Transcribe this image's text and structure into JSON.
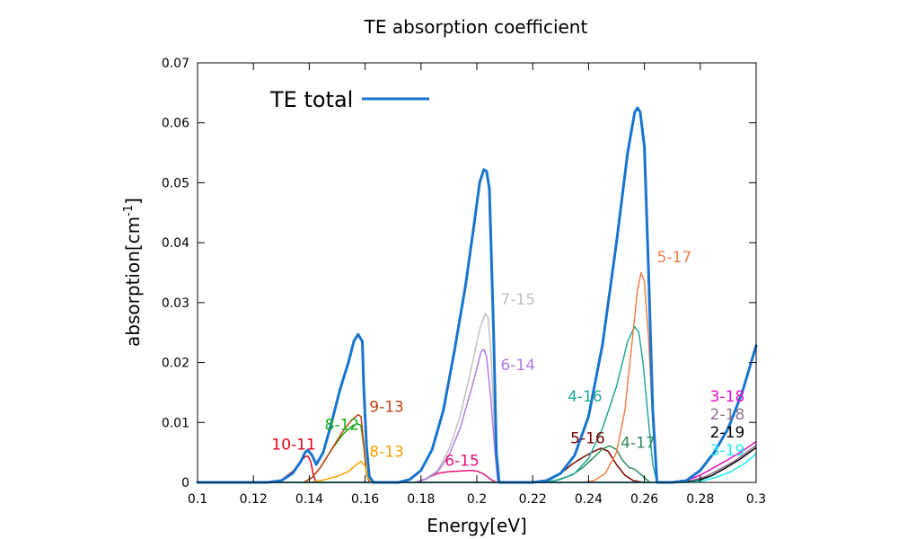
{
  "chart_data": {
    "type": "line",
    "title": "TE absorption coefficient",
    "xlabel": "Energy[eV]",
    "ylabel": "absorption[cm",
    "ylabel_sup": "-1",
    "ylabel_end": "]",
    "xlim": [
      0.1,
      0.3
    ],
    "ylim": [
      0,
      0.07
    ],
    "xticks": [
      0.1,
      0.12,
      0.14,
      0.16,
      0.18,
      0.2,
      0.22,
      0.24,
      0.26,
      0.28,
      0.3
    ],
    "xtick_labels": [
      "0.1",
      "0.12",
      "0.14",
      "0.16",
      "0.18",
      "0.2",
      "0.22",
      "0.24",
      "0.26",
      "0.28",
      "0.3"
    ],
    "yticks": [
      0,
      0.01,
      0.02,
      0.03,
      0.04,
      0.05,
      0.06,
      0.07
    ],
    "ytick_labels": [
      "0",
      "0.01",
      "0.02",
      "0.03",
      "0.04",
      "0.05",
      "0.06",
      "0.07"
    ],
    "grid": false,
    "legend": {
      "position": "top-left",
      "entries": [
        "TE total"
      ]
    },
    "series": [
      {
        "name": "TE total",
        "color": "#1874cd",
        "width": 3,
        "points": [
          [
            0.1,
            0
          ],
          [
            0.125,
            0
          ],
          [
            0.13,
            0.0003
          ],
          [
            0.134,
            0.0015
          ],
          [
            0.137,
            0.0035
          ],
          [
            0.1385,
            0.005
          ],
          [
            0.1395,
            0.0054
          ],
          [
            0.141,
            0.0045
          ],
          [
            0.1425,
            0.003
          ],
          [
            0.145,
            0.005
          ],
          [
            0.148,
            0.01
          ],
          [
            0.151,
            0.0155
          ],
          [
            0.154,
            0.02
          ],
          [
            0.156,
            0.0236
          ],
          [
            0.1575,
            0.0247
          ],
          [
            0.159,
            0.0235
          ],
          [
            0.1595,
            0.016
          ],
          [
            0.1605,
            0.006
          ],
          [
            0.1615,
            0.001
          ],
          [
            0.163,
            0
          ],
          [
            0.172,
            0
          ],
          [
            0.176,
            0.0005
          ],
          [
            0.18,
            0.002
          ],
          [
            0.184,
            0.0055
          ],
          [
            0.188,
            0.012
          ],
          [
            0.192,
            0.022
          ],
          [
            0.196,
            0.033
          ],
          [
            0.199,
            0.043
          ],
          [
            0.201,
            0.05
          ],
          [
            0.2025,
            0.0522
          ],
          [
            0.2035,
            0.0519
          ],
          [
            0.2045,
            0.049
          ],
          [
            0.206,
            0.025
          ],
          [
            0.207,
            0.005
          ],
          [
            0.208,
            0
          ],
          [
            0.22,
            0
          ],
          [
            0.225,
            0.0003
          ],
          [
            0.23,
            0.0015
          ],
          [
            0.235,
            0.0045
          ],
          [
            0.24,
            0.011
          ],
          [
            0.245,
            0.023
          ],
          [
            0.25,
            0.04
          ],
          [
            0.254,
            0.055
          ],
          [
            0.2565,
            0.0617
          ],
          [
            0.2575,
            0.0625
          ],
          [
            0.2585,
            0.0618
          ],
          [
            0.26,
            0.056
          ],
          [
            0.2615,
            0.035
          ],
          [
            0.263,
            0.012
          ],
          [
            0.2645,
            0
          ],
          [
            0.27,
            0
          ],
          [
            0.275,
            0.0003
          ],
          [
            0.28,
            0.002
          ],
          [
            0.285,
            0.005
          ],
          [
            0.29,
            0.009
          ],
          [
            0.295,
            0.015
          ],
          [
            0.3,
            0.0228
          ]
        ]
      },
      {
        "name": "10-11",
        "color": "#e0001a",
        "width": 1.5,
        "points": [
          [
            0.1,
            0
          ],
          [
            0.125,
            0
          ],
          [
            0.13,
            0.0004
          ],
          [
            0.134,
            0.0018
          ],
          [
            0.137,
            0.0035
          ],
          [
            0.1385,
            0.0043
          ],
          [
            0.1395,
            0.0044
          ],
          [
            0.1405,
            0.0035
          ],
          [
            0.1415,
            0.0012
          ],
          [
            0.1425,
            0
          ]
        ]
      },
      {
        "name": "8-12",
        "color": "#11b011",
        "width": 1.5,
        "points": [
          [
            0.1,
            0
          ],
          [
            0.138,
            0
          ],
          [
            0.141,
            0.0008
          ],
          [
            0.144,
            0.0025
          ],
          [
            0.148,
            0.0055
          ],
          [
            0.152,
            0.008
          ],
          [
            0.155,
            0.0093
          ],
          [
            0.157,
            0.0098
          ],
          [
            0.1585,
            0.0095
          ],
          [
            0.1595,
            0.006
          ],
          [
            0.1605,
            0.0015
          ],
          [
            0.1615,
            0
          ]
        ]
      },
      {
        "name": "9-13",
        "color": "#c04010",
        "width": 1.5,
        "points": [
          [
            0.1,
            0
          ],
          [
            0.138,
            0
          ],
          [
            0.141,
            0.0008
          ],
          [
            0.144,
            0.0025
          ],
          [
            0.148,
            0.0055
          ],
          [
            0.152,
            0.0085
          ],
          [
            0.155,
            0.0103
          ],
          [
            0.1575,
            0.0113
          ],
          [
            0.1585,
            0.011
          ],
          [
            0.1595,
            0.0065
          ],
          [
            0.1605,
            0.0015
          ],
          [
            0.1615,
            0
          ]
        ]
      },
      {
        "name": "8-13",
        "color": "#f0a000",
        "width": 1.5,
        "points": [
          [
            0.1,
            0
          ],
          [
            0.14,
            0
          ],
          [
            0.145,
            0.0004
          ],
          [
            0.15,
            0.001
          ],
          [
            0.154,
            0.0018
          ],
          [
            0.157,
            0.003
          ],
          [
            0.1585,
            0.0035
          ],
          [
            0.16,
            0.0028
          ],
          [
            0.161,
            0.0008
          ],
          [
            0.162,
            0
          ]
        ]
      },
      {
        "name": "6-15",
        "color": "#e8107a",
        "width": 1.5,
        "points": [
          [
            0.1,
            0
          ],
          [
            0.178,
            0
          ],
          [
            0.182,
            0.0007
          ],
          [
            0.186,
            0.0015
          ],
          [
            0.19,
            0.0018
          ],
          [
            0.194,
            0.0019
          ],
          [
            0.198,
            0.002
          ],
          [
            0.2,
            0.0019
          ],
          [
            0.2025,
            0.0014
          ],
          [
            0.205,
            0.0005
          ],
          [
            0.207,
            0
          ]
        ]
      },
      {
        "name": "7-15",
        "color": "#c0c0c0",
        "width": 1.5,
        "points": [
          [
            0.1,
            0
          ],
          [
            0.178,
            0
          ],
          [
            0.182,
            0.0007
          ],
          [
            0.186,
            0.002
          ],
          [
            0.19,
            0.0055
          ],
          [
            0.194,
            0.011
          ],
          [
            0.198,
            0.019
          ],
          [
            0.201,
            0.0255
          ],
          [
            0.203,
            0.0282
          ],
          [
            0.204,
            0.0275
          ],
          [
            0.205,
            0.022
          ],
          [
            0.206,
            0.012
          ],
          [
            0.207,
            0.003
          ],
          [
            0.2075,
            0
          ]
        ]
      },
      {
        "name": "6-14",
        "color": "#b07ae0",
        "width": 1.5,
        "points": [
          [
            0.1,
            0
          ],
          [
            0.178,
            0
          ],
          [
            0.182,
            0.0006
          ],
          [
            0.186,
            0.0018
          ],
          [
            0.19,
            0.0045
          ],
          [
            0.194,
            0.009
          ],
          [
            0.198,
            0.0155
          ],
          [
            0.2,
            0.019
          ],
          [
            0.2015,
            0.0218
          ],
          [
            0.2025,
            0.0222
          ],
          [
            0.2035,
            0.021
          ],
          [
            0.205,
            0.014
          ],
          [
            0.2065,
            0.005
          ],
          [
            0.2075,
            0
          ]
        ]
      },
      {
        "name": "5-16",
        "color": "#7a0000",
        "width": 1.5,
        "points": [
          [
            0.1,
            0
          ],
          [
            0.222,
            0
          ],
          [
            0.226,
            0.0005
          ],
          [
            0.23,
            0.0015
          ],
          [
            0.234,
            0.003
          ],
          [
            0.238,
            0.0042
          ],
          [
            0.242,
            0.0052
          ],
          [
            0.2445,
            0.0057
          ],
          [
            0.247,
            0.0052
          ],
          [
            0.25,
            0.003
          ],
          [
            0.253,
            0.0012
          ],
          [
            0.256,
            0.0003
          ],
          [
            0.26,
            0
          ]
        ]
      },
      {
        "name": "4-17",
        "color": "#2e8b57",
        "width": 1.5,
        "points": [
          [
            0.1,
            0
          ],
          [
            0.222,
            0
          ],
          [
            0.228,
            0.0003
          ],
          [
            0.234,
            0.0012
          ],
          [
            0.238,
            0.0025
          ],
          [
            0.242,
            0.0042
          ],
          [
            0.245,
            0.0056
          ],
          [
            0.2475,
            0.0061
          ],
          [
            0.25,
            0.0055
          ],
          [
            0.252,
            0.0038
          ],
          [
            0.2545,
            0.0025
          ],
          [
            0.2565,
            0.0022
          ],
          [
            0.259,
            0.0012
          ],
          [
            0.262,
            0
          ]
        ]
      },
      {
        "name": "4-16",
        "color": "#20a898",
        "width": 1.5,
        "points": [
          [
            0.1,
            0
          ],
          [
            0.225,
            0
          ],
          [
            0.23,
            0.0005
          ],
          [
            0.235,
            0.0015
          ],
          [
            0.24,
            0.004
          ],
          [
            0.245,
            0.009
          ],
          [
            0.25,
            0.016
          ],
          [
            0.254,
            0.0235
          ],
          [
            0.2565,
            0.026
          ],
          [
            0.258,
            0.025
          ],
          [
            0.2595,
            0.02
          ],
          [
            0.2615,
            0.01
          ],
          [
            0.263,
            0.003
          ],
          [
            0.2645,
            0
          ]
        ]
      },
      {
        "name": "5-17",
        "color": "#f08048",
        "width": 1.5,
        "points": [
          [
            0.1,
            0
          ],
          [
            0.238,
            0
          ],
          [
            0.242,
            0.0003
          ],
          [
            0.246,
            0.0015
          ],
          [
            0.25,
            0.005
          ],
          [
            0.253,
            0.012
          ],
          [
            0.2555,
            0.023
          ],
          [
            0.2575,
            0.032
          ],
          [
            0.2588,
            0.035
          ],
          [
            0.26,
            0.0335
          ],
          [
            0.2615,
            0.024
          ],
          [
            0.263,
            0.01
          ],
          [
            0.2645,
            0
          ]
        ]
      },
      {
        "name": "3-18",
        "color": "#e010c8",
        "width": 1.5,
        "points": [
          [
            0.1,
            0
          ],
          [
            0.27,
            0
          ],
          [
            0.275,
            0.0003
          ],
          [
            0.28,
            0.0012
          ],
          [
            0.285,
            0.0025
          ],
          [
            0.29,
            0.0038
          ],
          [
            0.295,
            0.0052
          ],
          [
            0.3,
            0.0068
          ]
        ]
      },
      {
        "name": "2-18",
        "color": "#907090",
        "width": 1.5,
        "points": [
          [
            0.1,
            0
          ],
          [
            0.272,
            0
          ],
          [
            0.277,
            0.0003
          ],
          [
            0.282,
            0.001
          ],
          [
            0.287,
            0.0022
          ],
          [
            0.292,
            0.0035
          ],
          [
            0.296,
            0.0048
          ],
          [
            0.3,
            0.0062
          ]
        ]
      },
      {
        "name": "2-19",
        "color": "#000000",
        "width": 1.5,
        "points": [
          [
            0.1,
            0
          ],
          [
            0.274,
            0
          ],
          [
            0.279,
            0.0003
          ],
          [
            0.284,
            0.0011
          ],
          [
            0.289,
            0.0024
          ],
          [
            0.294,
            0.0038
          ],
          [
            0.3,
            0.0058
          ]
        ]
      },
      {
        "name": "3-19",
        "color": "#20e8e8",
        "width": 1.5,
        "points": [
          [
            0.1,
            0
          ],
          [
            0.276,
            0
          ],
          [
            0.281,
            0.0003
          ],
          [
            0.286,
            0.0009
          ],
          [
            0.291,
            0.0018
          ],
          [
            0.296,
            0.0032
          ],
          [
            0.3,
            0.0048
          ]
        ]
      }
    ],
    "annotations": [
      {
        "text": "10-11",
        "x": 0.1265,
        "y": 0.0055,
        "color": "#e0001a"
      },
      {
        "text": "8-12",
        "x": 0.1455,
        "y": 0.0088,
        "color": "#11b011"
      },
      {
        "text": "9-13",
        "x": 0.1615,
        "y": 0.0118,
        "color": "#c04010"
      },
      {
        "text": "8-13",
        "x": 0.1615,
        "y": 0.0043,
        "color": "#f0a000"
      },
      {
        "text": "6-15",
        "x": 0.1885,
        "y": 0.0028,
        "color": "#e8107a"
      },
      {
        "text": "7-15",
        "x": 0.2085,
        "y": 0.0297,
        "color": "#c0c0c0"
      },
      {
        "text": "6-14",
        "x": 0.2085,
        "y": 0.0187,
        "color": "#b07ae0"
      },
      {
        "text": "5-16",
        "x": 0.2335,
        "y": 0.0065,
        "color": "#7a0000"
      },
      {
        "text": "4-17",
        "x": 0.2515,
        "y": 0.0058,
        "color": "#2e8b57"
      },
      {
        "text": "4-16",
        "x": 0.2325,
        "y": 0.0135,
        "color": "#20a898"
      },
      {
        "text": "5-17",
        "x": 0.2645,
        "y": 0.0367,
        "color": "#f08048"
      },
      {
        "text": "3-18",
        "x": 0.2835,
        "y": 0.0135,
        "color": "#e010c8"
      },
      {
        "text": "2-18",
        "x": 0.2835,
        "y": 0.0105,
        "color": "#907090"
      },
      {
        "text": "2-19",
        "x": 0.2835,
        "y": 0.0075,
        "color": "#000000"
      },
      {
        "text": "3-19",
        "x": 0.2835,
        "y": 0.0045,
        "color": "#20e8e8"
      }
    ]
  }
}
